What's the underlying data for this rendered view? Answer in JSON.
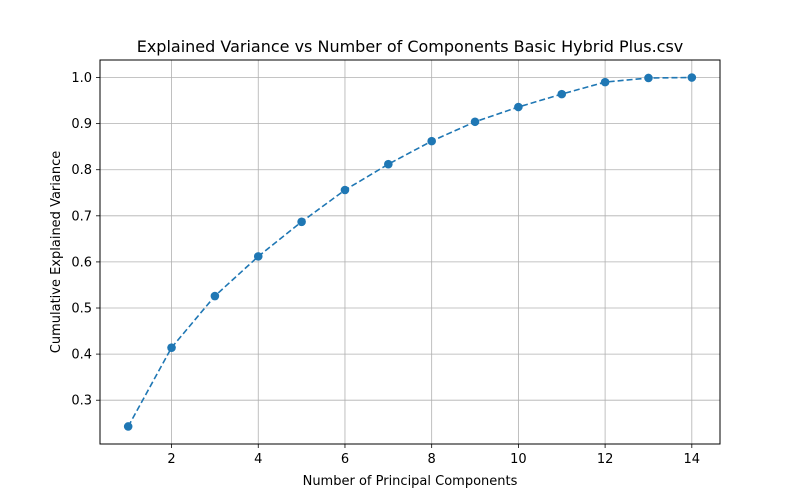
{
  "chart_data": {
    "type": "line",
    "title": "Explained Variance vs Number of Components Basic Hybrid Plus.csv",
    "xlabel": "Number of Principal Components",
    "ylabel": "Cumulative Explained Variance",
    "xlim": [
      0.35,
      14.65
    ],
    "ylim": [
      0.205,
      1.038
    ],
    "xticks": [
      2,
      4,
      6,
      8,
      10,
      12,
      14
    ],
    "yticks": [
      0.3,
      0.4,
      0.5,
      0.6,
      0.7,
      0.8,
      0.9,
      1.0
    ],
    "ytick_labels": [
      "0.3",
      "0.4",
      "0.5",
      "0.6",
      "0.7",
      "0.8",
      "0.9",
      "1.0"
    ],
    "grid": true,
    "line_style": "dashed",
    "marker": "circle",
    "color": "#1f77b4",
    "series": [
      {
        "x": [
          1,
          2,
          3,
          4,
          5,
          6,
          7,
          8,
          9,
          10,
          11,
          12,
          13,
          14
        ],
        "values": [
          0.243,
          0.414,
          0.526,
          0.612,
          0.687,
          0.756,
          0.812,
          0.862,
          0.904,
          0.936,
          0.964,
          0.99,
          0.999,
          1.0
        ]
      }
    ]
  }
}
